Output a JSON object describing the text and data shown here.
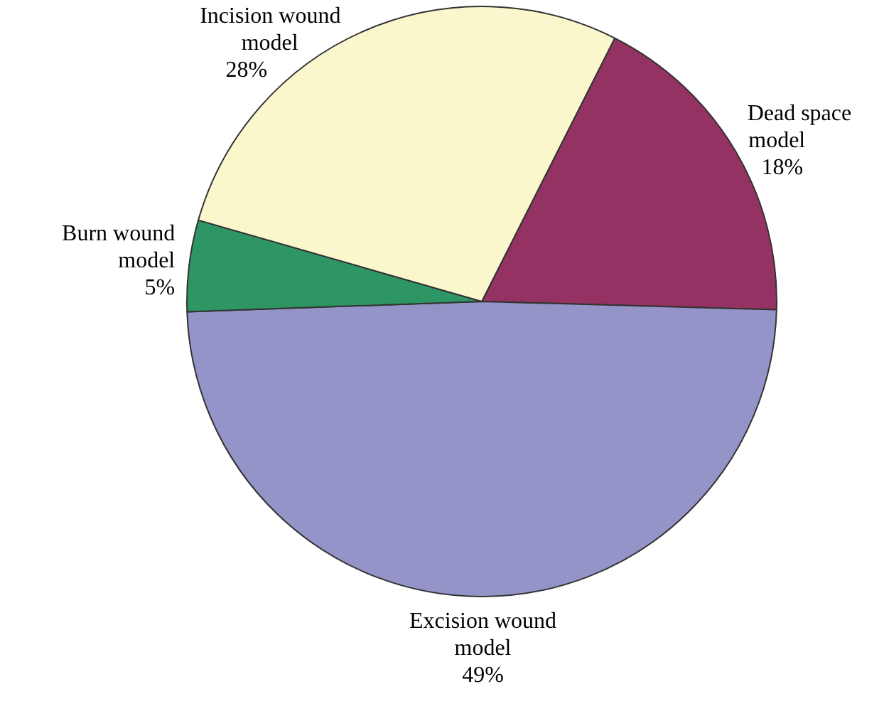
{
  "chart_data": {
    "type": "pie",
    "categories": [
      "Dead space model",
      "Excision wound model",
      "Burn wound model",
      "Incision wound model"
    ],
    "values": [
      18,
      49,
      5,
      28
    ],
    "value_labels": [
      "18%",
      "49%",
      "5%",
      "28%"
    ],
    "colors": [
      "#943263",
      "#9494c8",
      "#2e9565",
      "#faf7cc"
    ],
    "legend": false
  }
}
